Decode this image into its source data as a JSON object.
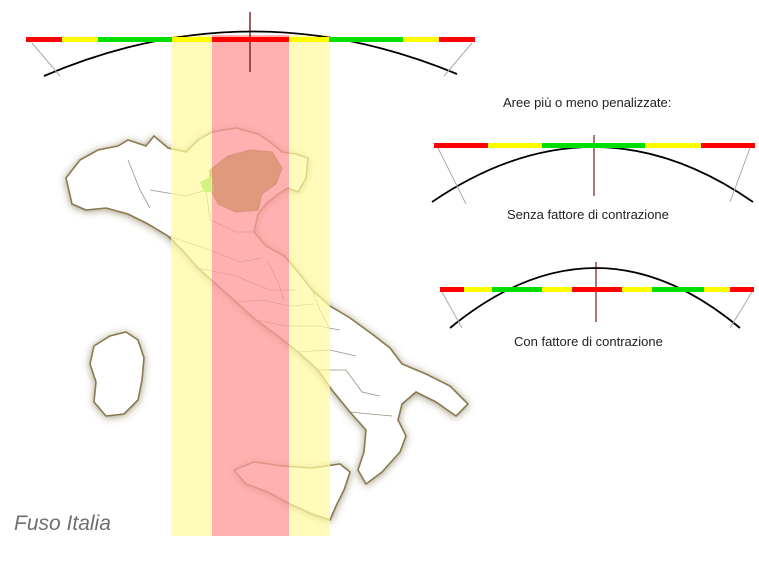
{
  "caption": "Fuso Italia",
  "legend": {
    "heading": "Aree più o meno penalizzate:",
    "without_contraction": "Senza fattore di contrazione",
    "with_contraction": "Con fattore di contrazione"
  },
  "colors": {
    "zone_red": "#ff9a9a",
    "zone_yellow": "#fff9a0",
    "band_red": "#ff0000",
    "band_yellow": "#ffff00",
    "band_green": "#00dd00",
    "region_highlight": "#6e9a1c",
    "region_light": "#66dd33",
    "map_fill": "#ffffff",
    "map_outline": "#7a6a48",
    "meridian": "#7a1a1a"
  },
  "icons": {
    "projection_top": "cylinder-secant-arc",
    "projection_1": "secant-arc",
    "projection_2": "secant-arc-contracted",
    "map": "italy-map"
  }
}
